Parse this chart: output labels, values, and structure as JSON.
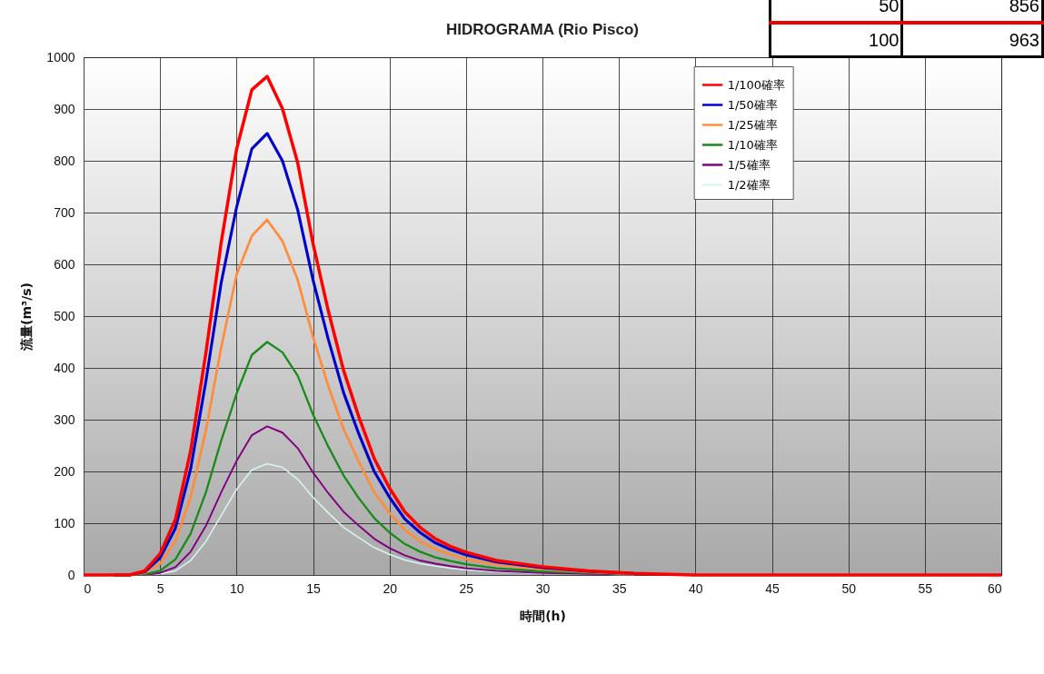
{
  "chart_data": {
    "type": "line",
    "title": "HIDROGRAMA (Rio Pisco)",
    "xlabel": "時間(h)",
    "ylabel": "流量(m³/s)",
    "x": [
      0,
      1,
      2,
      3,
      4,
      5,
      6,
      7,
      8,
      9,
      10,
      11,
      12,
      13,
      14,
      15,
      16,
      17,
      18,
      19,
      20,
      21,
      22,
      23,
      24,
      25,
      27,
      30,
      33,
      36,
      40,
      60
    ],
    "series": [
      {
        "name": "1/100確率",
        "color": "#ff0000",
        "values": [
          0,
          0,
          0,
          0,
          8,
          41,
          107,
          240,
          430,
          643,
          822,
          937,
          963,
          901,
          796,
          640,
          510,
          395,
          305,
          225,
          168,
          122,
          92,
          70,
          55,
          44,
          28,
          16,
          8,
          3,
          0,
          0
        ]
      },
      {
        "name": "1/50確率",
        "color": "#0000cc",
        "values": [
          null,
          null,
          0,
          0,
          6,
          33,
          90,
          205,
          375,
          565,
          710,
          823,
          853,
          800,
          705,
          570,
          455,
          352,
          272,
          200,
          150,
          108,
          82,
          62,
          49,
          39,
          25,
          14,
          7,
          3,
          null,
          null
        ]
      },
      {
        "name": "1/25確率",
        "color": "#ff8c3c",
        "values": [
          null,
          null,
          0,
          0,
          4,
          22,
          65,
          150,
          280,
          440,
          580,
          655,
          686,
          645,
          570,
          460,
          365,
          282,
          218,
          160,
          120,
          87,
          65,
          50,
          39,
          31,
          20,
          11,
          6,
          2,
          null,
          null
        ]
      },
      {
        "name": "1/10確率",
        "color": "#1a8a1a",
        "values": [
          null,
          null,
          0,
          0,
          1,
          8,
          30,
          80,
          160,
          260,
          350,
          425,
          450,
          430,
          385,
          310,
          248,
          192,
          148,
          110,
          82,
          60,
          45,
          34,
          27,
          21,
          13,
          7,
          4,
          1,
          null,
          null
        ]
      },
      {
        "name": "1/5確率",
        "color": "#800080",
        "values": [
          null,
          null,
          0,
          0,
          0,
          4,
          15,
          45,
          95,
          160,
          220,
          270,
          287,
          275,
          245,
          198,
          158,
          122,
          95,
          70,
          52,
          38,
          28,
          22,
          17,
          13,
          8,
          4,
          2,
          1,
          null,
          null
        ]
      },
      {
        "name": "1/2確率",
        "color": "#d8f4f4",
        "values": [
          null,
          null,
          0,
          0,
          0,
          2,
          8,
          28,
          65,
          115,
          165,
          203,
          215,
          208,
          185,
          150,
          120,
          92,
          72,
          53,
          40,
          29,
          22,
          17,
          13,
          10,
          6,
          3,
          2,
          0,
          null,
          null
        ]
      }
    ],
    "xlim": [
      0,
      60
    ],
    "xticks": [
      0,
      5,
      10,
      15,
      20,
      25,
      30,
      35,
      40,
      45,
      50,
      55,
      60
    ],
    "ylim": [
      0,
      1000
    ],
    "yticks": [
      0,
      100,
      200,
      300,
      400,
      500,
      600,
      700,
      800,
      900,
      1000
    ],
    "grid": true,
    "legend": "top right",
    "marker": "none",
    "line_style": "solid",
    "annotations": [
      "50",
      "856",
      "100",
      "963"
    ]
  }
}
